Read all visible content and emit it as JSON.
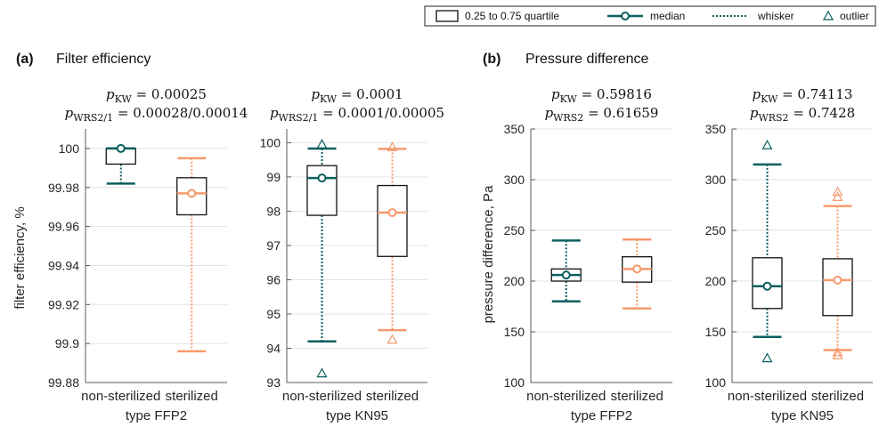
{
  "legend": {
    "box": "0.25 to 0.75 quartile",
    "median": "median",
    "whisker": "whisker",
    "outlier": "outlier"
  },
  "colors": {
    "nonsterilized": "#0b5f5f",
    "sterilized": "#f59a6e",
    "grid": "#e3e3e3",
    "axis": "#5a5a5a"
  },
  "panels": [
    {
      "letter": "(a)",
      "title": "Filter efficiency",
      "ylabel": "filter efficiency, %"
    },
    {
      "letter": "(b)",
      "title": "Pressure difference",
      "ylabel": "pressure difference, Pa"
    }
  ],
  "chart_data": [
    {
      "type": "box",
      "panel": "(a)",
      "xlabel": "type FFP2",
      "ylabel": "filter efficiency, %",
      "stat1_lhs": "p_KW",
      "stat1_rhs": "0.00025",
      "stat2_lhs": "p_WRS2/1",
      "stat2_rhs": "0.00028/0.00014",
      "ylim": [
        99.88,
        100.01
      ],
      "yticks": [
        99.88,
        99.9,
        99.92,
        99.94,
        99.96,
        99.98,
        100
      ],
      "yticklabels": [
        "99.88",
        "99.9",
        "99.92",
        "99.94",
        "99.96",
        "99.98",
        "100"
      ],
      "categories": [
        "non-sterilized",
        "sterilized"
      ],
      "series": [
        {
          "q1": 99.992,
          "median": 100.0,
          "q3": 100.0,
          "whisker_low": 99.982,
          "whisker_high": 100.0,
          "outliers": []
        },
        {
          "q1": 99.966,
          "median": 99.977,
          "q3": 99.985,
          "whisker_low": 99.896,
          "whisker_high": 99.995,
          "outliers": []
        }
      ]
    },
    {
      "type": "box",
      "panel": "(a)",
      "xlabel": "type KN95",
      "ylabel": "",
      "stat1_lhs": "p_KW",
      "stat1_rhs": "0.0001",
      "stat2_lhs": "p_WRS2/1",
      "stat2_rhs": "0.0001/0.00005",
      "ylim": [
        93,
        100.4
      ],
      "yticks": [
        93,
        94,
        95,
        96,
        97,
        98,
        99,
        100
      ],
      "yticklabels": [
        "93",
        "94",
        "95",
        "96",
        "97",
        "98",
        "99",
        "100"
      ],
      "categories": [
        "non-sterilized",
        "sterilized"
      ],
      "series": [
        {
          "q1": 97.88,
          "median": 98.97,
          "q3": 99.33,
          "whisker_low": 94.2,
          "whisker_high": 99.83,
          "outliers": [
            99.95,
            93.27
          ]
        },
        {
          "q1": 96.68,
          "median": 97.96,
          "q3": 98.75,
          "whisker_low": 94.53,
          "whisker_high": 99.82,
          "outliers": [
            99.87,
            94.25
          ]
        }
      ]
    },
    {
      "type": "box",
      "panel": "(b)",
      "xlabel": "type FFP2",
      "ylabel": "pressure difference, Pa",
      "stat1_lhs": "p_KW",
      "stat1_rhs": "0.59816",
      "stat2_lhs": "p_WRS2",
      "stat2_rhs": "0.61659",
      "ylim": [
        100,
        350
      ],
      "yticks": [
        100,
        150,
        200,
        250,
        300,
        350
      ],
      "yticklabels": [
        "100",
        "150",
        "200",
        "250",
        "300",
        "350"
      ],
      "categories": [
        "non-sterilized",
        "sterilized"
      ],
      "series": [
        {
          "q1": 200,
          "median": 206,
          "q3": 212,
          "whisker_low": 180,
          "whisker_high": 240,
          "outliers": []
        },
        {
          "q1": 199,
          "median": 212,
          "q3": 224,
          "whisker_low": 173,
          "whisker_high": 241,
          "outliers": []
        }
      ]
    },
    {
      "type": "box",
      "panel": "(b)",
      "xlabel": "type KN95",
      "ylabel": "",
      "stat1_lhs": "p_KW",
      "stat1_rhs": "0.74113",
      "stat2_lhs": "p_WRS2",
      "stat2_rhs": "0.7428",
      "ylim": [
        100,
        350
      ],
      "yticks": [
        100,
        150,
        200,
        250,
        300,
        350
      ],
      "yticklabels": [
        "100",
        "150",
        "200",
        "250",
        "300",
        "350"
      ],
      "categories": [
        "non-sterilized",
        "sterilized"
      ],
      "series": [
        {
          "q1": 173,
          "median": 195,
          "q3": 223,
          "whisker_low": 145,
          "whisker_high": 315,
          "outliers": [
            334,
            124
          ]
        },
        {
          "q1": 166,
          "median": 201,
          "q3": 222,
          "whisker_low": 132,
          "whisker_high": 274,
          "outliers": [
            288,
            283,
            130,
            127
          ]
        }
      ]
    }
  ]
}
